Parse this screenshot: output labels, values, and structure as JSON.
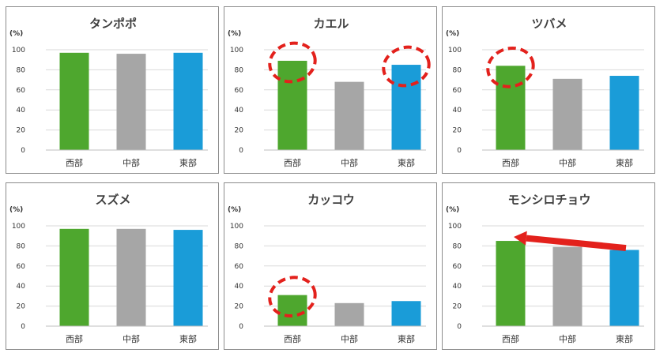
{
  "colors": {
    "west": "#4ea72e",
    "central": "#a6a6a6",
    "east": "#1a9cd8",
    "annotation": "#e3211c"
  },
  "chart_data": [
    {
      "type": "bar",
      "title": "タンポポ",
      "ylabel": "(%)",
      "categories": [
        "西部",
        "中部",
        "東部"
      ],
      "values": [
        97,
        96,
        97
      ],
      "ylim": [
        0,
        100
      ],
      "yticks": [
        0,
        20,
        40,
        60,
        80,
        100
      ],
      "grid": true,
      "annotations": []
    },
    {
      "type": "bar",
      "title": "カエル",
      "ylabel": "(%)",
      "categories": [
        "西部",
        "中部",
        "東部"
      ],
      "values": [
        89,
        68,
        85
      ],
      "ylim": [
        0,
        100
      ],
      "yticks": [
        0,
        20,
        40,
        60,
        80,
        100
      ],
      "grid": true,
      "annotations": [
        {
          "kind": "dashed-circle",
          "category_index": 0
        },
        {
          "kind": "dashed-circle",
          "category_index": 2
        }
      ]
    },
    {
      "type": "bar",
      "title": "ツバメ",
      "ylabel": "(%)",
      "categories": [
        "西部",
        "中部",
        "東部"
      ],
      "values": [
        84,
        71,
        74
      ],
      "ylim": [
        0,
        100
      ],
      "yticks": [
        0,
        20,
        40,
        60,
        80,
        100
      ],
      "grid": true,
      "annotations": [
        {
          "kind": "dashed-circle",
          "category_index": 0
        }
      ]
    },
    {
      "type": "bar",
      "title": "スズメ",
      "ylabel": "(%)",
      "categories": [
        "西部",
        "中部",
        "東部"
      ],
      "values": [
        97,
        97,
        96
      ],
      "ylim": [
        0,
        100
      ],
      "yticks": [
        0,
        20,
        40,
        60,
        80,
        100
      ],
      "grid": true,
      "annotations": []
    },
    {
      "type": "bar",
      "title": "カッコウ",
      "ylabel": "(%)",
      "categories": [
        "西部",
        "中部",
        "東部"
      ],
      "values": [
        31,
        23,
        25
      ],
      "ylim": [
        0,
        100
      ],
      "yticks": [
        0,
        20,
        40,
        60,
        80,
        100
      ],
      "grid": true,
      "annotations": [
        {
          "kind": "dashed-circle",
          "category_index": 0
        }
      ]
    },
    {
      "type": "bar",
      "title": "モンシロチョウ",
      "ylabel": "(%)",
      "categories": [
        "西部",
        "中部",
        "東部"
      ],
      "values": [
        85,
        79,
        76
      ],
      "ylim": [
        0,
        100
      ],
      "yticks": [
        0,
        20,
        40,
        60,
        80,
        100
      ],
      "grid": true,
      "annotations": [
        {
          "kind": "arrow",
          "direction": "from east toward west"
        }
      ]
    }
  ]
}
